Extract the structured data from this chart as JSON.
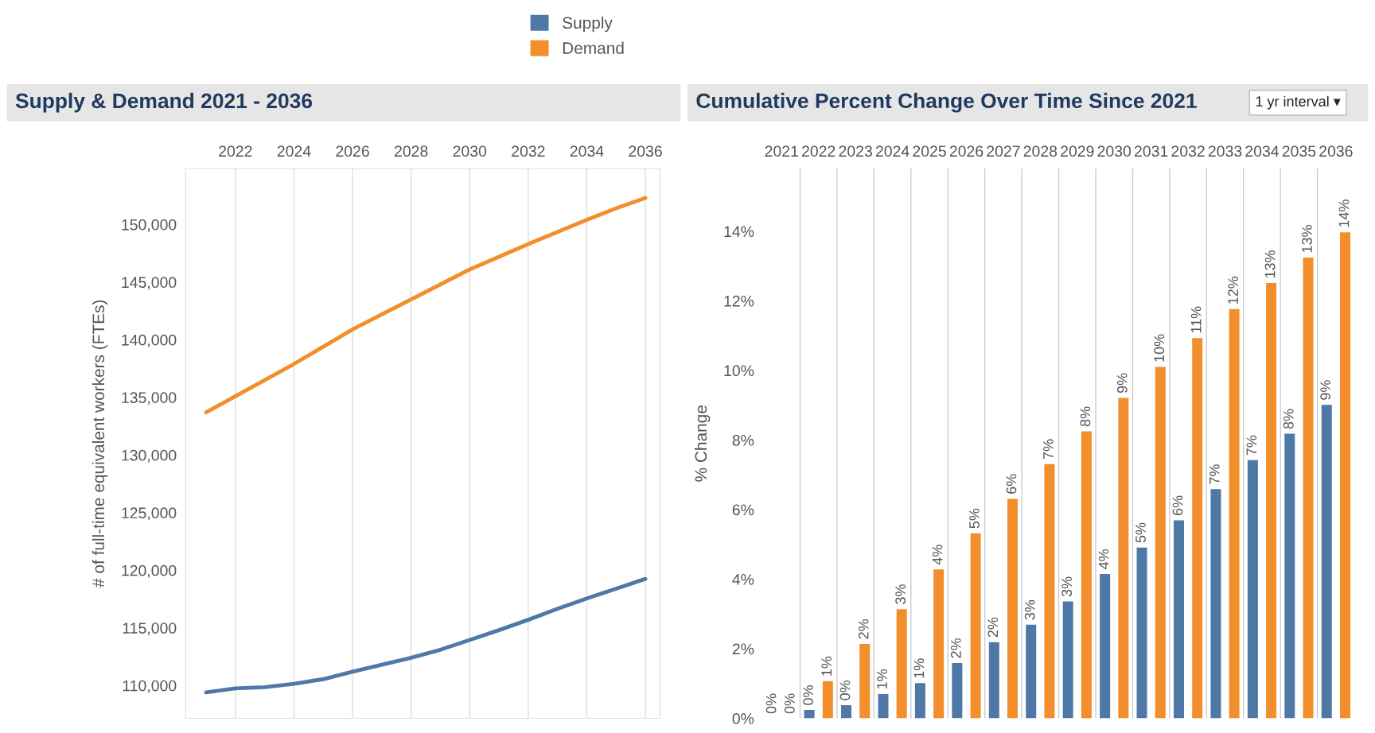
{
  "chart_data": [
    {
      "type": "line",
      "title": "Supply & Demand 2021 - 2036",
      "ylabel": "# of full-time equivalent workers (FTEs)",
      "x": [
        2021,
        2022,
        2023,
        2024,
        2025,
        2026,
        2027,
        2028,
        2029,
        2030,
        2031,
        2032,
        2033,
        2034,
        2035,
        2036
      ],
      "series": [
        {
          "name": "Supply",
          "color": "#4e79a7",
          "values": [
            109400,
            109750,
            109850,
            110150,
            110550,
            111200,
            111800,
            112400,
            113100,
            113950,
            114800,
            115700,
            116650,
            117550,
            118400,
            119250
          ]
        },
        {
          "name": "Demand",
          "color": "#f28e2b",
          "values": [
            133700,
            135100,
            136500,
            137900,
            139400,
            140900,
            142200,
            143500,
            144800,
            146100,
            147200,
            148300,
            149350,
            150400,
            151400,
            152300
          ]
        }
      ],
      "xlim": [
        2020.3,
        2036.5
      ],
      "xticks": [
        2022,
        2024,
        2026,
        2028,
        2030,
        2032,
        2034,
        2036
      ],
      "ylim": [
        107150,
        154850
      ],
      "yticks": [
        {
          "value": 110000,
          "label": "110,000"
        },
        {
          "value": 115000,
          "label": "115,000"
        },
        {
          "value": 120000,
          "label": "120,000"
        },
        {
          "value": 125000,
          "label": "125,000"
        },
        {
          "value": 130000,
          "label": "130,000"
        },
        {
          "value": 135000,
          "label": "135,000"
        },
        {
          "value": 140000,
          "label": "140,000"
        },
        {
          "value": 145000,
          "label": "145,000"
        },
        {
          "value": 150000,
          "label": "150,000"
        }
      ],
      "grid": "x",
      "legend": "top",
      "marker": "none",
      "line_style": "solid"
    },
    {
      "type": "bar",
      "title": "Cumulative Percent Change Over Time Since 2021",
      "ylabel": "% Change",
      "annotations": [
        "1 yr interval ▾"
      ],
      "categories": [
        "2021",
        "2022",
        "2023",
        "2024",
        "2025",
        "2026",
        "2027",
        "2028",
        "2029",
        "2030",
        "2031",
        "2032",
        "2033",
        "2034",
        "2035",
        "2036"
      ],
      "series": [
        {
          "color": "#4e79a7",
          "values": [
            0,
            0.24,
            0.38,
            0.7,
            1.01,
            1.59,
            2.19,
            2.69,
            3.36,
            4.15,
            4.91,
            5.69,
            6.59,
            7.42,
            8.18,
            9.01
          ],
          "value_labels": [
            "0%",
            "0%",
            "0%",
            "1%",
            "1%",
            "2%",
            "2%",
            "3%",
            "3%",
            "4%",
            "5%",
            "6%",
            "7%",
            "7%",
            "8%",
            "9%"
          ]
        },
        {
          "color": "#f28e2b",
          "values": [
            0,
            1.07,
            2.14,
            3.14,
            4.28,
            5.32,
            6.31,
            7.31,
            8.25,
            9.21,
            10.1,
            10.93,
            11.76,
            12.51,
            13.24,
            13.97
          ],
          "value_labels": [
            "0%",
            "1%",
            "2%",
            "3%",
            "4%",
            "5%",
            "6%",
            "7%",
            "8%",
            "9%",
            "10%",
            "11%",
            "12%",
            "13%",
            "13%",
            "14%"
          ]
        }
      ],
      "ylim": [
        0,
        15.8
      ],
      "yticks": [
        {
          "value": 0,
          "label": "0%"
        },
        {
          "value": 2,
          "label": "2%"
        },
        {
          "value": 4,
          "label": "4%"
        },
        {
          "value": 6,
          "label": "6%"
        },
        {
          "value": 8,
          "label": "8%"
        },
        {
          "value": 10,
          "label": "10%"
        },
        {
          "value": 12,
          "label": "12%"
        },
        {
          "value": 14,
          "label": "14%"
        }
      ],
      "grid": false
    }
  ]
}
